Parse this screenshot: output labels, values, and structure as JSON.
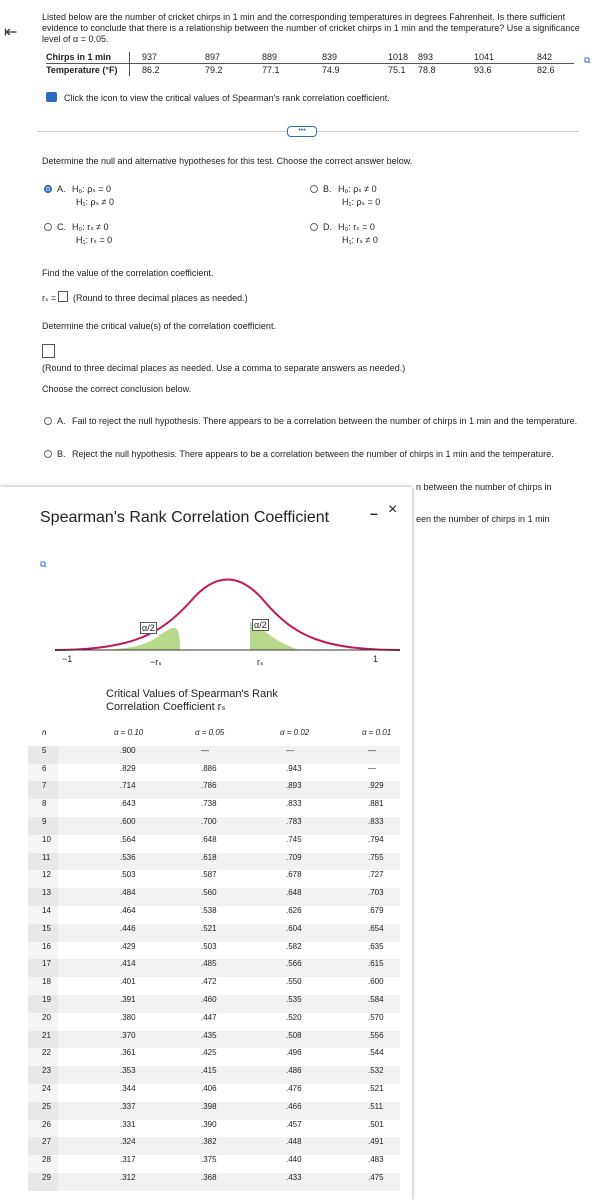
{
  "intro": "Listed below are the number of cricket chirps in 1 min and the corresponding temperatures in degrees Fahrenheit. Is there sufficient evidence to conclude that there is a relationship between the number of cricket chirps in 1 min and the temperature? Use a significance level of α = 0.05.",
  "data_table": {
    "headers": [
      "Chirps in 1 min",
      "Temperature (°F)"
    ],
    "chirps": [
      937,
      897,
      889,
      839,
      1018,
      893,
      1041,
      842
    ],
    "temperatures": [
      86.2,
      79.2,
      77.1,
      74.9,
      75.1,
      78.8,
      93.6,
      82.6
    ]
  },
  "icon_note": "Click the icon to view the critical values of Spearman's rank correlation coefficient.",
  "hypotheses": {
    "prompt": "Determine the null and alternative hypotheses for this test. Choose the correct answer below.",
    "options": [
      {
        "letter": "A.",
        "h0": "H₀: ρₛ = 0",
        "h1": "H₁: ρₛ ≠ 0"
      },
      {
        "letter": "B.",
        "h0": "H₀: ρₛ ≠ 0",
        "h1": "H₁: ρₛ = 0"
      },
      {
        "letter": "C.",
        "h0": "H₀: rₛ ≠ 0",
        "h1": "H₁: rₛ = 0"
      },
      {
        "letter": "D.",
        "h0": "H₀: rₛ = 0",
        "h1": "H₁: rₛ ≠ 0"
      }
    ]
  },
  "coefficient": {
    "prompt": "Find the value of the correlation coefficient.",
    "label": "rₛ =",
    "note": "(Round to three decimal places as needed.)"
  },
  "critical": {
    "prompt": "Determine the critical value(s) of the correlation coefficient.",
    "note": "(Round to three decimal places as needed. Use a comma to separate answers as needed.)"
  },
  "conclusion": {
    "prompt": "Choose the correct conclusion below.",
    "options": [
      {
        "letter": "A.",
        "text": "Fail to reject the null hypothesis. There appears to be a correlation between the number of chirps in 1 min and the temperature."
      },
      {
        "letter": "B.",
        "text": "Reject the null hypothesis. There appears to be a correlation between the number of chirps in 1 min and the temperature."
      }
    ],
    "hidden_fragments": [
      "n between the number of chirps in",
      "een the number of chirps in 1 min"
    ]
  },
  "popup": {
    "title": "Spearman's Rank Correlation Coefficient",
    "curve_labels": {
      "left_tail": "α/2",
      "right_tail": "α/2",
      "minus_one": "−1",
      "minus_rs": "−rₛ",
      "rs": "rₛ",
      "one": "1"
    },
    "table_title": "Critical Values of Spearman's Rank Correlation Coefficient rₛ",
    "headers": [
      "n",
      "α = 0.10",
      "α = 0.05",
      "α = 0.02",
      "α = 0.01"
    ],
    "rows": [
      [
        "5",
        ".900",
        "—",
        "—",
        "—"
      ],
      [
        "6",
        ".829",
        ".886",
        ".943",
        "—"
      ],
      [
        "7",
        ".714",
        ".786",
        ".893",
        ".929"
      ],
      [
        "8",
        ".643",
        ".738",
        ".833",
        ".881"
      ],
      [
        "9",
        ".600",
        ".700",
        ".783",
        ".833"
      ],
      [
        "10",
        ".564",
        ".648",
        ".745",
        ".794"
      ],
      [
        "11",
        ".536",
        ".618",
        ".709",
        ".755"
      ],
      [
        "12",
        ".503",
        ".587",
        ".678",
        ".727"
      ],
      [
        "13",
        ".484",
        ".560",
        ".648",
        ".703"
      ],
      [
        "14",
        ".464",
        ".538",
        ".626",
        ".679"
      ],
      [
        "15",
        ".446",
        ".521",
        ".604",
        ".654"
      ],
      [
        "16",
        ".429",
        ".503",
        ".582",
        ".635"
      ],
      [
        "17",
        ".414",
        ".485",
        ".566",
        ".615"
      ],
      [
        "18",
        ".401",
        ".472",
        ".550",
        ".600"
      ],
      [
        "19",
        ".391",
        ".460",
        ".535",
        ".584"
      ],
      [
        "20",
        ".380",
        ".447",
        ".520",
        ".570"
      ],
      [
        "21",
        ".370",
        ".435",
        ".508",
        ".556"
      ],
      [
        "22",
        ".361",
        ".425",
        ".496",
        ".544"
      ],
      [
        "23",
        ".353",
        ".415",
        ".486",
        ".532"
      ],
      [
        "24",
        ".344",
        ".406",
        ".476",
        ".521"
      ],
      [
        "25",
        ".337",
        ".398",
        ".466",
        ".511"
      ],
      [
        "26",
        ".331",
        ".390",
        ".457",
        ".501"
      ],
      [
        "27",
        ".324",
        ".382",
        ".448",
        ".491"
      ],
      [
        "28",
        ".317",
        ".375",
        ".440",
        ".483"
      ],
      [
        "29",
        ".312",
        ".368",
        ".433",
        ".475"
      ]
    ]
  }
}
